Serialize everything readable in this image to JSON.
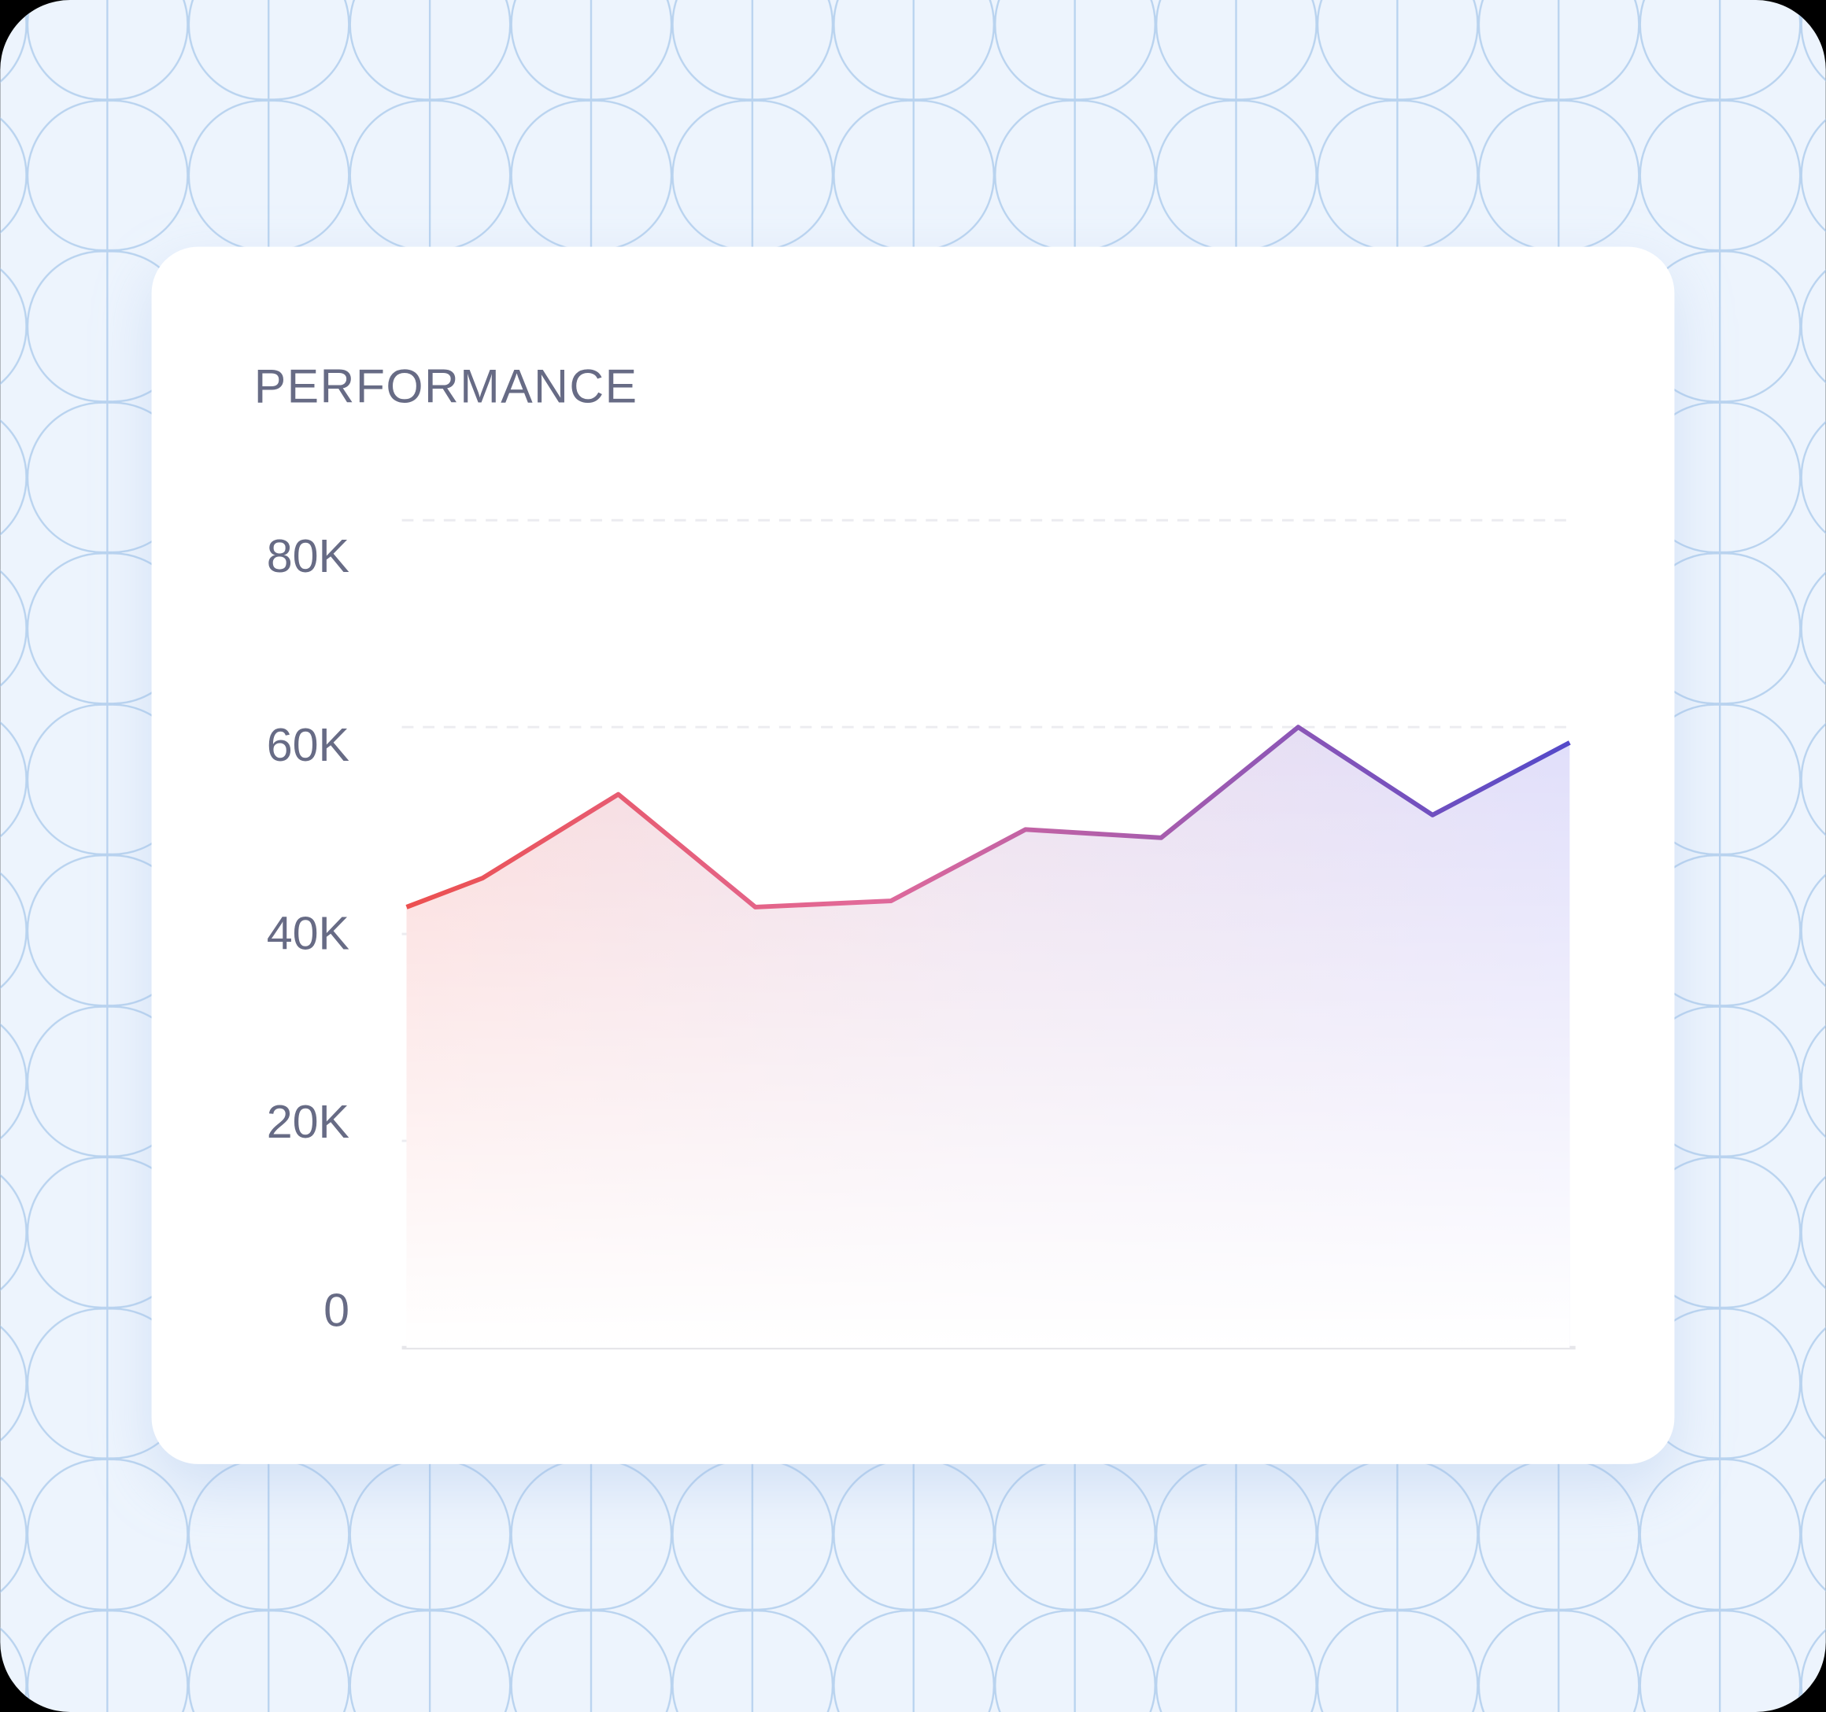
{
  "chart_data": {
    "type": "area",
    "title": "PERFORMANCE",
    "x": [
      0,
      0.56,
      1.56,
      2.57,
      3.57,
      4.56,
      5.56,
      6.57,
      7.56,
      8.57
    ],
    "xlim": [
      0,
      8.57
    ],
    "series": [
      {
        "values": [
          42600,
          45400,
          53500,
          42600,
          43200,
          50100,
          49300,
          60000,
          51500,
          58500
        ],
        "color": [
          "#ec5050",
          "#5449c9"
        ]
      }
    ],
    "ylim": [
      0,
      80000
    ],
    "yticks": [
      {
        "value": 0,
        "label": "0"
      },
      {
        "value": 20000,
        "label": "20K"
      },
      {
        "value": 40000,
        "label": "40K"
      },
      {
        "value": 60000,
        "label": "60K"
      },
      {
        "value": 80000,
        "label": "80K"
      }
    ],
    "grid": true
  }
}
